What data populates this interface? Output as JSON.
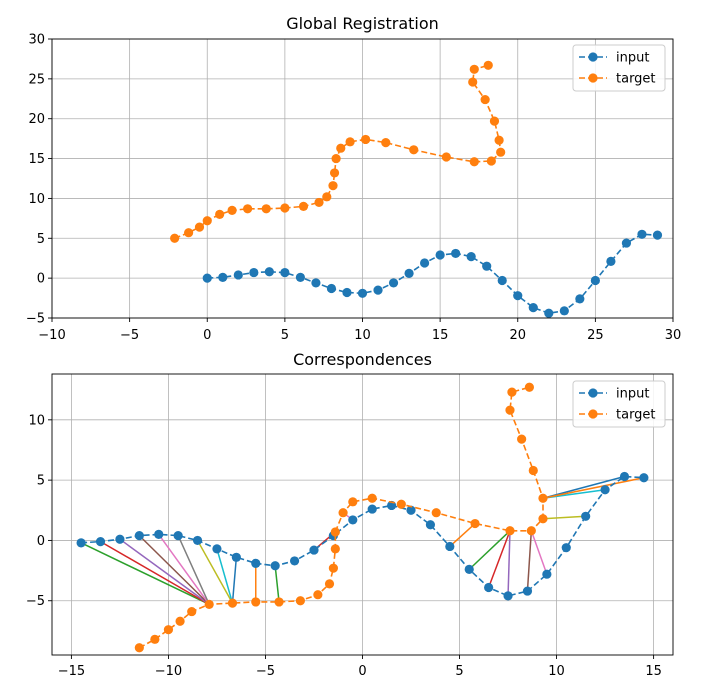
{
  "chart_data": [
    {
      "type": "line",
      "title": "Global Registration",
      "xlabel": "",
      "ylabel": "",
      "xlim": [
        -10,
        30
      ],
      "ylim": [
        -5,
        30
      ],
      "xticks": [
        -10,
        -5,
        0,
        5,
        10,
        15,
        20,
        25,
        30
      ],
      "yticks": [
        -5,
        0,
        5,
        10,
        15,
        20,
        25,
        30
      ],
      "xtick_labels": [
        "−10",
        "−5",
        "0",
        "5",
        "10",
        "15",
        "20",
        "25",
        "30"
      ],
      "ytick_labels": [
        "−5",
        "0",
        "5",
        "10",
        "15",
        "20",
        "25",
        "30"
      ],
      "grid": true,
      "legend_position": "upper right",
      "series": [
        {
          "name": "input",
          "color": "#1f77b4",
          "style": "dashed-with-circle-markers",
          "points": [
            [
              0,
              0
            ],
            [
              1,
              0.1
            ],
            [
              2,
              0.4
            ],
            [
              3,
              0.7
            ],
            [
              4,
              0.8
            ],
            [
              5,
              0.7
            ],
            [
              6,
              0.1
            ],
            [
              7,
              -0.6
            ],
            [
              8,
              -1.3
            ],
            [
              9,
              -1.8
            ],
            [
              10,
              -1.9
            ],
            [
              11,
              -1.5
            ],
            [
              12,
              -0.6
            ],
            [
              13,
              0.6
            ],
            [
              14,
              1.9
            ],
            [
              15,
              2.9
            ],
            [
              16,
              3.1
            ],
            [
              17,
              2.7
            ],
            [
              18,
              1.5
            ],
            [
              19,
              -0.3
            ],
            [
              20,
              -2.2
            ],
            [
              21,
              -3.7
            ],
            [
              22,
              -4.4
            ],
            [
              23,
              -4.1
            ],
            [
              24,
              -2.6
            ],
            [
              25,
              -0.3
            ],
            [
              26,
              2.1
            ],
            [
              27,
              4.4
            ],
            [
              28,
              5.5
            ],
            [
              29,
              5.4
            ]
          ]
        },
        {
          "name": "target",
          "color": "#ff7f0e",
          "style": "dashed-with-circle-markers",
          "points": [
            [
              -2.1,
              5.0
            ],
            [
              -1.2,
              5.7
            ],
            [
              -0.5,
              6.4
            ],
            [
              0,
              7.2
            ],
            [
              0.8,
              8.0
            ],
            [
              1.6,
              8.5
            ],
            [
              2.6,
              8.7
            ],
            [
              3.8,
              8.7
            ],
            [
              5,
              8.8
            ],
            [
              6.2,
              9.0
            ],
            [
              7.2,
              9.5
            ],
            [
              7.7,
              10.2
            ],
            [
              8.1,
              11.6
            ],
            [
              8.2,
              13.2
            ],
            [
              8.3,
              15.0
            ],
            [
              8.6,
              16.3
            ],
            [
              9.2,
              17.1
            ],
            [
              10.2,
              17.4
            ],
            [
              11.5,
              17.0
            ],
            [
              13.3,
              16.1
            ],
            [
              15.4,
              15.2
            ],
            [
              17.2,
              14.6
            ],
            [
              18.3,
              14.7
            ],
            [
              18.9,
              15.8
            ],
            [
              18.8,
              17.3
            ],
            [
              18.5,
              19.7
            ],
            [
              17.9,
              22.4
            ],
            [
              17.1,
              24.6
            ],
            [
              17.2,
              26.2
            ],
            [
              18.1,
              26.7
            ]
          ]
        }
      ]
    },
    {
      "type": "line",
      "title": "Correspondences",
      "xlabel": "",
      "ylabel": "",
      "xlim": [
        -16,
        16
      ],
      "ylim": [
        -9.5,
        13.8
      ],
      "xticks": [
        -15,
        -10,
        -5,
        0,
        5,
        10,
        15
      ],
      "yticks": [
        -5,
        0,
        5,
        10
      ],
      "xtick_labels": [
        "−15",
        "−10",
        "−5",
        "0",
        "5",
        "10",
        "15"
      ],
      "ytick_labels": [
        "−5",
        "0",
        "5",
        "10"
      ],
      "grid": true,
      "legend_position": "upper right",
      "series": [
        {
          "name": "input",
          "color": "#1f77b4",
          "style": "dashed-with-circle-markers",
          "points": [
            [
              -14.5,
              -0.2
            ],
            [
              -13.5,
              -0.1
            ],
            [
              -12.5,
              0.1
            ],
            [
              -11.5,
              0.4
            ],
            [
              -10.5,
              0.5
            ],
            [
              -9.5,
              0.4
            ],
            [
              -8.5,
              0.0
            ],
            [
              -7.5,
              -0.7
            ],
            [
              -6.5,
              -1.4
            ],
            [
              -5.5,
              -1.9
            ],
            [
              -4.5,
              -2.1
            ],
            [
              -3.5,
              -1.7
            ],
            [
              -2.5,
              -0.8
            ],
            [
              -1.5,
              0.4
            ],
            [
              -0.5,
              1.7
            ],
            [
              0.5,
              2.6
            ],
            [
              1.5,
              2.9
            ],
            [
              2.5,
              2.5
            ],
            [
              3.5,
              1.3
            ],
            [
              4.5,
              -0.5
            ],
            [
              5.5,
              -2.4
            ],
            [
              6.5,
              -3.9
            ],
            [
              7.5,
              -4.6
            ],
            [
              8.5,
              -4.2
            ],
            [
              9.5,
              -2.8
            ],
            [
              10.5,
              -0.6
            ],
            [
              11.5,
              2.0
            ],
            [
              12.5,
              4.2
            ],
            [
              13.5,
              5.3
            ],
            [
              14.5,
              5.2
            ]
          ]
        },
        {
          "name": "target",
          "color": "#ff7f0e",
          "style": "dashed-with-circle-markers",
          "points": [
            [
              -11.5,
              -8.9
            ],
            [
              -10.7,
              -8.2
            ],
            [
              -10.0,
              -7.4
            ],
            [
              -9.4,
              -6.7
            ],
            [
              -8.8,
              -5.9
            ],
            [
              -7.9,
              -5.3
            ],
            [
              -6.7,
              -5.2
            ],
            [
              -5.5,
              -5.1
            ],
            [
              -4.3,
              -5.1
            ],
            [
              -3.2,
              -5.0
            ],
            [
              -2.3,
              -4.5
            ],
            [
              -1.7,
              -3.6
            ],
            [
              -1.5,
              -2.3
            ],
            [
              -1.4,
              -0.7
            ],
            [
              -1.4,
              0.7
            ],
            [
              -1.0,
              2.3
            ],
            [
              -0.5,
              3.2
            ],
            [
              0.5,
              3.5
            ],
            [
              2.0,
              3.0
            ],
            [
              3.8,
              2.3
            ],
            [
              5.8,
              1.4
            ],
            [
              7.6,
              0.8
            ],
            [
              8.7,
              0.8
            ],
            [
              9.3,
              1.8
            ],
            [
              9.3,
              3.5
            ],
            [
              8.8,
              5.8
            ],
            [
              8.2,
              8.4
            ],
            [
              7.6,
              10.8
            ],
            [
              7.7,
              12.3
            ],
            [
              8.6,
              12.7
            ]
          ]
        }
      ],
      "correspondences": [
        {
          "input": 0,
          "target": 5,
          "color": "#2ca02c"
        },
        {
          "input": 1,
          "target": 5,
          "color": "#d62728"
        },
        {
          "input": 2,
          "target": 5,
          "color": "#9467bd"
        },
        {
          "input": 3,
          "target": 5,
          "color": "#8c564b"
        },
        {
          "input": 4,
          "target": 5,
          "color": "#e377c2"
        },
        {
          "input": 5,
          "target": 5,
          "color": "#7f7f7f"
        },
        {
          "input": 6,
          "target": 6,
          "color": "#bcbd22"
        },
        {
          "input": 7,
          "target": 6,
          "color": "#17becf"
        },
        {
          "input": 8,
          "target": 6,
          "color": "#1f77b4"
        },
        {
          "input": 9,
          "target": 7,
          "color": "#ff7f0e"
        },
        {
          "input": 10,
          "target": 8,
          "color": "#2ca02c"
        },
        {
          "input": 12,
          "target": 14,
          "color": "#d62728"
        },
        {
          "input": 14,
          "target": 15,
          "color": "#e377c2"
        },
        {
          "input": 19,
          "target": 20,
          "color": "#ff7f0e"
        },
        {
          "input": 20,
          "target": 21,
          "color": "#2ca02c"
        },
        {
          "input": 21,
          "target": 21,
          "color": "#d62728"
        },
        {
          "input": 22,
          "target": 21,
          "color": "#9467bd"
        },
        {
          "input": 23,
          "target": 22,
          "color": "#8c564b"
        },
        {
          "input": 24,
          "target": 22,
          "color": "#e377c2"
        },
        {
          "input": 26,
          "target": 23,
          "color": "#bcbd22"
        },
        {
          "input": 27,
          "target": 24,
          "color": "#17becf"
        },
        {
          "input": 28,
          "target": 24,
          "color": "#1f77b4"
        },
        {
          "input": 29,
          "target": 24,
          "color": "#ff7f0e"
        }
      ]
    }
  ]
}
